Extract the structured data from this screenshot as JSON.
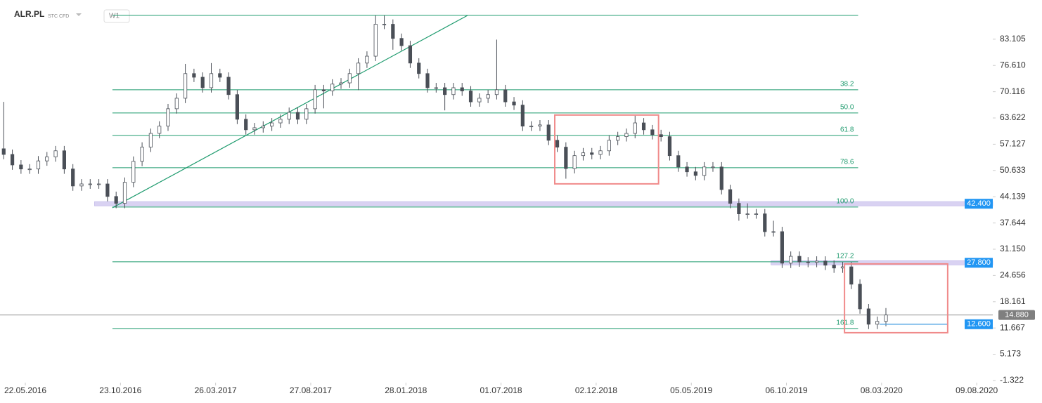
{
  "chart_data": {
    "type": "candlestick",
    "symbol": "ALR.PL",
    "market": "STC CFD",
    "interval": "W1",
    "x": [
      "17.04.2016",
      "01.05.2016",
      "15.05.2016",
      "29.05.2016",
      "12.06.2016",
      "26.06.2016",
      "10.07.2016",
      "24.07.2016",
      "07.08.2016",
      "21.08.2016",
      "04.09.2016",
      "18.09.2016",
      "02.10.2016",
      "16.10.2016",
      "30.10.2016",
      "13.11.2016",
      "27.11.2016",
      "11.12.2016",
      "25.12.2016",
      "08.01.2017",
      "22.01.2017",
      "05.02.2017",
      "19.02.2017",
      "05.03.2017",
      "19.03.2017",
      "02.04.2017",
      "16.04.2017",
      "30.04.2017",
      "14.05.2017",
      "28.05.2017",
      "11.06.2017",
      "25.06.2017",
      "09.07.2017",
      "23.07.2017",
      "06.08.2017",
      "20.08.2017",
      "03.09.2017",
      "17.09.2017",
      "01.10.2017",
      "15.10.2017",
      "29.10.2017",
      "12.11.2017",
      "26.11.2017",
      "10.12.2017",
      "24.12.2017",
      "07.01.2018",
      "21.01.2018",
      "04.02.2018",
      "18.02.2018",
      "04.03.2018",
      "18.03.2018",
      "01.04.2018",
      "15.04.2018",
      "29.04.2018",
      "13.05.2018",
      "27.05.2018",
      "10.06.2018",
      "24.06.2018",
      "08.07.2018",
      "22.07.2018",
      "05.08.2018",
      "19.08.2018",
      "02.09.2018",
      "16.09.2018",
      "30.09.2018",
      "14.10.2018",
      "28.10.2018",
      "11.11.2018",
      "25.11.2018",
      "09.12.2018",
      "23.12.2018",
      "06.01.2019",
      "20.01.2019",
      "03.02.2019",
      "17.02.2019",
      "03.03.2019",
      "17.03.2019",
      "31.03.2019",
      "14.04.2019",
      "28.04.2019",
      "12.05.2019",
      "26.05.2019",
      "09.06.2019",
      "23.06.2019",
      "07.07.2019",
      "21.07.2019",
      "04.08.2019",
      "18.08.2019",
      "01.09.2019",
      "15.09.2019",
      "29.09.2019",
      "13.10.2019",
      "27.10.2019",
      "10.11.2019",
      "24.11.2019",
      "08.12.2019",
      "22.12.2019",
      "05.01.2020",
      "19.01.2020",
      "02.02.2020",
      "16.02.2020",
      "01.03.2020",
      "15.03.2020"
    ],
    "open": [
      56,
      54.6,
      52,
      51,
      51,
      53,
      54,
      55.5,
      51,
      46.8,
      47.3,
      47.3,
      47.3,
      44.2,
      42.5,
      47.7,
      52.9,
      56.4,
      59.8,
      61.6,
      65.9,
      68.5,
      74.6,
      73.7,
      71.1,
      74.6,
      73.7,
      69.4,
      63.3,
      60.7,
      61.2,
      61.6,
      62.4,
      63.3,
      65,
      63.3,
      65.9,
      70.6,
      70.3,
      72,
      72.3,
      74.6,
      77.2,
      78.9,
      86.8,
      86.8,
      83.3,
      81.5,
      77.2,
      74.6,
      71.1,
      71.1,
      69.4,
      71.1,
      70.3,
      67.6,
      68.5,
      69.4,
      70.6,
      67.6,
      66.8,
      61.6,
      61.6,
      61.9,
      58.1,
      56.4,
      51.1,
      54.3,
      55,
      54.6,
      55.5,
      58.1,
      59,
      59.8,
      62.4,
      60.7,
      59.5,
      59,
      54.3,
      51.5,
      50.3,
      49.4,
      51.5,
      51.5,
      45.9,
      42.5,
      39.9,
      39.9,
      39.9,
      35.5,
      35.5,
      27.7,
      29.4,
      28,
      27.9,
      28.2,
      27.2,
      26.5,
      26.8,
      22.5,
      16.4,
      12.6,
      13.3
    ],
    "high": [
      67.6,
      55.8,
      53.2,
      52.2,
      54.2,
      55.2,
      56.7,
      56.7,
      52.2,
      48.5,
      48.5,
      48.5,
      48.5,
      45.4,
      48.9,
      54.1,
      57.6,
      61.0,
      62.8,
      67.1,
      69.7,
      77.0,
      75.8,
      74.9,
      77.2,
      75.8,
      74.9,
      70.6,
      64.5,
      62.4,
      62.8,
      63.6,
      64.5,
      66.2,
      66.2,
      67.1,
      71.8,
      71.8,
      73.2,
      73.5,
      75.8,
      78.4,
      80.1,
      89.0,
      89.0,
      88.0,
      84.5,
      82.7,
      78.4,
      75.8,
      72.3,
      72.3,
      72.3,
      72.3,
      71.5,
      69.7,
      70.6,
      83.0,
      71.8,
      68.8,
      68.0,
      62.8,
      63.1,
      63.1,
      59.3,
      57.6,
      55.5,
      56.2,
      56.2,
      56.7,
      59.3,
      60.2,
      61.0,
      64.2,
      63.6,
      61.9,
      60.7,
      60.2,
      55.5,
      52.7,
      51.5,
      52.7,
      52.7,
      52.7,
      47.1,
      43.7,
      42.5,
      41.1,
      41.1,
      38.2,
      36.7,
      30.6,
      30.6,
      29.2,
      29.4,
      29.4,
      28.4,
      28.0,
      28.0,
      23.7,
      17.6,
      14.5,
      16.6
    ],
    "low": [
      53.4,
      50.8,
      49.8,
      49.8,
      49.8,
      51.8,
      52.8,
      49.8,
      45.6,
      45.6,
      46.1,
      46.1,
      43.0,
      41.3,
      41.3,
      46.5,
      51.7,
      55.2,
      58.6,
      60.4,
      64.7,
      67.3,
      72.5,
      69.9,
      69.9,
      72.5,
      68.2,
      62.1,
      59.5,
      59.5,
      60.0,
      60.4,
      61.2,
      62.1,
      62.1,
      62.1,
      64.7,
      66.0,
      69.1,
      70.8,
      71.1,
      70.5,
      76.0,
      77.7,
      85.6,
      80.5,
      80.3,
      76.0,
      73.4,
      69.9,
      69.9,
      65.5,
      68.2,
      69.1,
      66.4,
      66.4,
      67.3,
      68.2,
      66.4,
      65.6,
      60.4,
      60.4,
      60.4,
      56.9,
      55.2,
      48.6,
      49.9,
      53.1,
      53.4,
      53.4,
      54.3,
      56.9,
      57.8,
      58.6,
      59.5,
      58.3,
      57.8,
      53.1,
      50.3,
      49.1,
      48.2,
      48.2,
      50.3,
      44.7,
      41.3,
      38.2,
      38.7,
      38.7,
      34.3,
      34.3,
      26.5,
      26.5,
      26.8,
      26.7,
      26.7,
      26.0,
      25.3,
      25.3,
      21.3,
      15.2,
      11.4,
      11.4,
      12.1
    ],
    "close": [
      54.6,
      52,
      51,
      51,
      53,
      54,
      55.5,
      51,
      46.8,
      47.3,
      47.3,
      47.3,
      44.2,
      42.5,
      47.7,
      52.9,
      56.4,
      59.8,
      61.6,
      65.9,
      68.5,
      74.6,
      73.7,
      71.1,
      74.6,
      73.7,
      69.4,
      63.3,
      60.7,
      61.2,
      61.6,
      62.4,
      63.3,
      65,
      63.3,
      65.9,
      70.6,
      70.3,
      72,
      72.3,
      74.6,
      77.2,
      78.9,
      86.8,
      86.8,
      83.3,
      81.5,
      77.2,
      74.6,
      71.1,
      71.1,
      69.4,
      71.1,
      70.3,
      67.6,
      68.5,
      69.4,
      70.6,
      67.6,
      66.8,
      61.6,
      61.6,
      61.9,
      58.1,
      56.4,
      51.1,
      54.3,
      55,
      54.6,
      55.5,
      58.1,
      59,
      59.8,
      62.4,
      60.7,
      59.5,
      59,
      54.3,
      51.5,
      50.3,
      49.4,
      51.5,
      51.5,
      45.9,
      42.5,
      39.9,
      39.9,
      39.9,
      35.5,
      35.5,
      27.7,
      29.4,
      28,
      27.9,
      28.2,
      27.2,
      26.5,
      26.8,
      22.5,
      16.4,
      12.6,
      13.3,
      14.88
    ],
    "up_color": "#ffffff",
    "down_color": "#4a4f57",
    "outline_color": "#4a4f57",
    "xlim": [
      "11.04.2016",
      "04.09.2020"
    ],
    "xticks": [
      "22.05.2016",
      "23.10.2016",
      "26.03.2017",
      "27.08.2017",
      "28.01.2018",
      "01.07.2018",
      "02.12.2018",
      "05.05.2019",
      "06.10.2019",
      "08.03.2020",
      "09.08.2020"
    ],
    "ylim": [
      -1.85,
      92.8
    ],
    "yticks": [
      83.105,
      {
        "value": 76.61,
        "label": "76.610"
      },
      70.116,
      63.622,
      57.127,
      50.633,
      44.139,
      37.644,
      {
        "value": 31.15,
        "label": "31.150"
      },
      24.656,
      18.161,
      11.667,
      5.173,
      -1.322
    ],
    "levels_x": [
      "10.10.2016",
      "30.01.2020"
    ],
    "levels_color": "#1e9b6e",
    "levels": [
      {
        "value": 89.0
      },
      {
        "value": 70.6,
        "label": "38.2"
      },
      {
        "value": 64.87,
        "label": "50.0"
      },
      {
        "value": 59.31,
        "label": "61.8"
      },
      {
        "value": 51.32,
        "label": "78.6"
      },
      {
        "value": 41.59,
        "label": "100.0"
      },
      {
        "value": 28.04,
        "label": "127.2"
      },
      {
        "value": 11.54,
        "label": "161.8"
      }
    ],
    "trend_line": {
      "x": [
        "10.10.2016",
        "08.05.2018"
      ],
      "y": [
        41.4,
        89.0
      ]
    },
    "bands": [
      {
        "value": 42.4,
        "label": "42.400",
        "from": "11.09.2016"
      },
      {
        "value": 27.8,
        "label": "27.800",
        "from": "11.09.2019"
      }
    ],
    "band_color": "#d9d2f2",
    "tag_color": "#2196f3",
    "target_line": {
      "value": 12.6,
      "label": "12.600",
      "x": [
        "05.03.2020",
        "23.06.2020"
      ],
      "color": "#5aa9e6"
    },
    "last_price": {
      "value": 14.88,
      "label": "14.880",
      "color": "#7f7f7f"
    },
    "boxes": [
      {
        "x": [
          "26.09.2018",
          "13.03.2019"
        ],
        "y": [
          64.35,
          47.32
        ]
      },
      {
        "x": [
          "08.01.2020",
          "23.06.2020"
        ],
        "y": [
          27.52,
          10.5
        ]
      }
    ],
    "box_color": "#f08a8a"
  }
}
